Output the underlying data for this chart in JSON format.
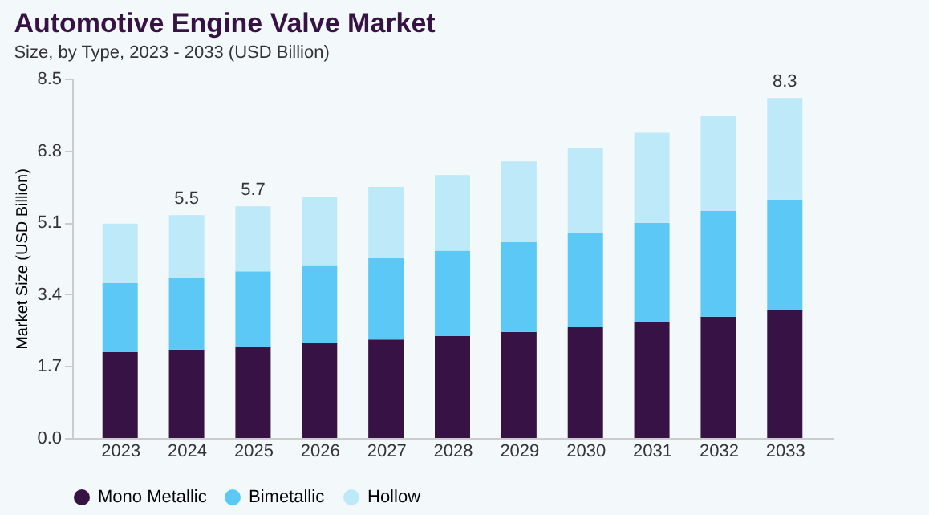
{
  "chart_data": {
    "type": "bar",
    "title": "Automotive Engine Valve Market",
    "subtitle": "Size, by Type, 2023 - 2033 (USD Billion)",
    "ylabel": "Market Size (USD Billion)",
    "categories": [
      "2023",
      "2024",
      "2025",
      "2026",
      "2027",
      "2028",
      "2029",
      "2030",
      "2031",
      "2032",
      "2033"
    ],
    "stacked": true,
    "series": [
      {
        "name": "Mono Metallic",
        "color": "#361245",
        "values": [
          2.03,
          2.09,
          2.16,
          2.25,
          2.33,
          2.41,
          2.51,
          2.62,
          2.75,
          2.87,
          3.02
        ]
      },
      {
        "name": "Bimetallic",
        "color": "#5bc8f5",
        "values": [
          1.63,
          1.7,
          1.78,
          1.84,
          1.92,
          2.02,
          2.12,
          2.23,
          2.34,
          2.5,
          2.62
        ]
      },
      {
        "name": "Hollow",
        "color": "#bde9f9",
        "values": [
          1.41,
          1.48,
          1.54,
          1.6,
          1.69,
          1.79,
          1.91,
          2.01,
          2.13,
          2.25,
          2.4
        ]
      }
    ],
    "annotations": [
      "5.5",
      "5.7",
      "8.3"
    ],
    "ylim": [
      0,
      8.5
    ],
    "yticks": [
      {
        "value": 0,
        "label": "0.0"
      },
      1.7,
      3.4,
      5.1,
      6.8,
      8.5
    ],
    "grid": false,
    "legend": "bottom"
  }
}
